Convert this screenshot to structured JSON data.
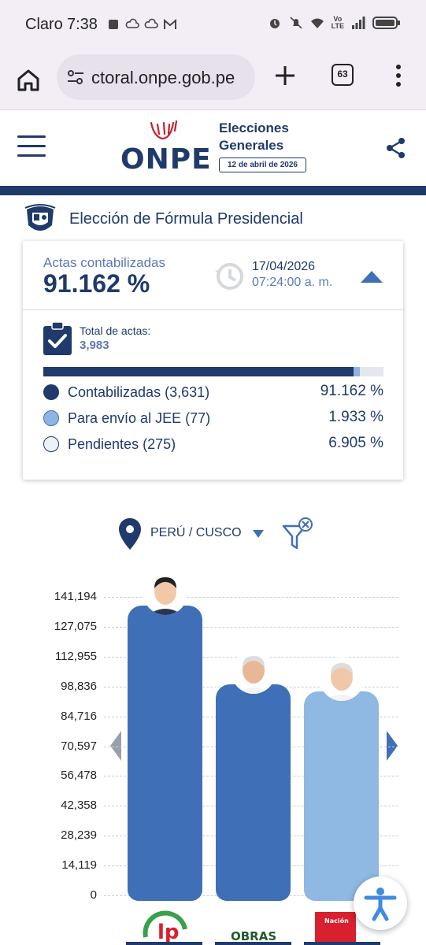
{
  "status_bar": {
    "carrier": "Claro",
    "time": "7:38",
    "volte_top": "Vo",
    "volte_bottom": "LTE"
  },
  "browser": {
    "url": "ctoral.onpe.gob.pe",
    "tab_count": "63"
  },
  "header": {
    "logo_text": "ONPE",
    "title_line1": "Elecciones",
    "title_line2": "Generales",
    "date_badge": "12 de abril de 2026"
  },
  "election": {
    "title": "Elección de Fórmula Presidencial"
  },
  "summary": {
    "actas_label": "Actas contabilizadas",
    "actas_pct": "91.162 %",
    "date": "17/04/2026",
    "time": "07:24:00 a. m.",
    "total_label": "Total de actas:",
    "total_value": "3,983",
    "progress": [
      {
        "name": "contabilizadas",
        "fraction": 0.91162,
        "color": "#1f3a6b"
      },
      {
        "name": "jee",
        "fraction": 0.01933,
        "color": "#8fb4e3"
      },
      {
        "name": "pendientes",
        "fraction": 0.06905,
        "color": "#e4e8ee"
      }
    ],
    "legend": [
      {
        "label": "Contabilizadas (3,631)",
        "pct": "91.162 %",
        "color": "#1f3a6b"
      },
      {
        "label": "Para envío al JEE (77)",
        "pct": "1.933 %",
        "color": "#8fb4e3"
      },
      {
        "label": "Pendientes (275)",
        "pct": "6.905 %",
        "color": "#eef1f5"
      }
    ]
  },
  "filter": {
    "location": "PERÚ / CUSCO"
  },
  "chart_data": {
    "type": "bar",
    "ylim": [
      0,
      141194
    ],
    "yticks": [
      "141,194",
      "127,075",
      "112,955",
      "98,836",
      "84,716",
      "70,597",
      "56,478",
      "42,358",
      "28,239",
      "14,119",
      "0"
    ],
    "tick_values": [
      141194,
      127075,
      112955,
      98836,
      84716,
      70597,
      56478,
      42358,
      28239,
      14119,
      0
    ],
    "series": [
      {
        "values": [
          137000,
          100000,
          96500
        ]
      }
    ],
    "bar_colors": [
      "#3f6fb6",
      "#3f6fb6",
      "#8fb8e2"
    ],
    "grid": true
  },
  "party_logos": [
    "OBRAS",
    "Nación"
  ]
}
